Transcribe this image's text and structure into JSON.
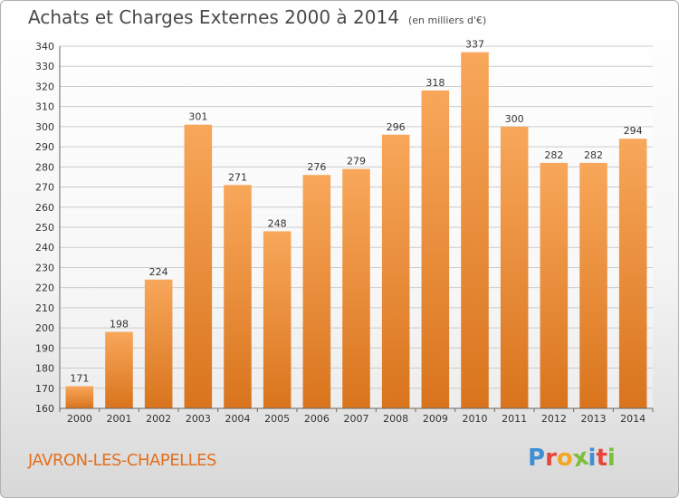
{
  "chart_data": {
    "type": "bar",
    "title": "Achats et Charges Externes 2000 à 2014",
    "subtitle": "(en milliers d'€)",
    "categories": [
      "2000",
      "2001",
      "2002",
      "2003",
      "2004",
      "2005",
      "2006",
      "2007",
      "2008",
      "2009",
      "2010",
      "2011",
      "2012",
      "2013",
      "2014"
    ],
    "values": [
      171,
      198,
      224,
      301,
      271,
      248,
      276,
      279,
      296,
      318,
      337,
      300,
      282,
      282,
      294
    ],
    "ylim": [
      160,
      340
    ],
    "yticks": [
      160,
      170,
      180,
      190,
      200,
      210,
      220,
      230,
      240,
      250,
      260,
      270,
      280,
      290,
      300,
      310,
      320,
      330,
      340
    ],
    "ytick_labels": [
      "160",
      "170",
      "180",
      "190",
      "200",
      "210",
      "220",
      "230",
      "240",
      "250",
      "260",
      "270",
      "280",
      "290",
      "300",
      "310",
      "320",
      "330",
      "340"
    ],
    "grid": true,
    "bar_color_top": "#f8a75a",
    "bar_color_bottom": "#d9741d",
    "grid_color": "#cccccc"
  },
  "footer": {
    "city": "JAVRON-LES-CHAPELLES",
    "logo_letters": [
      "P",
      "r",
      "o",
      "x",
      "i",
      "t",
      "i"
    ],
    "logo_colors": [
      "#3f8fd6",
      "#e8453c",
      "#f5a623",
      "#7bbf3a",
      "#3f8fd6",
      "#e8453c",
      "#7bbf3a"
    ]
  }
}
